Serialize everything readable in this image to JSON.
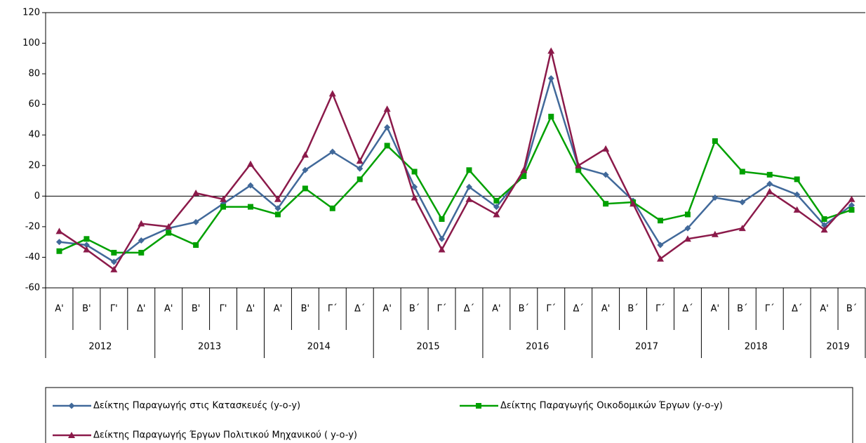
{
  "chart_data": {
    "type": "line",
    "categories": [
      "Α'",
      "Β'",
      "Γ'",
      "Δ'",
      "Α'",
      "Β'",
      "Γ'",
      "Δ'",
      "Α'",
      "Β'",
      "Γ΄",
      "Δ΄",
      "Α'",
      "Β΄",
      "Γ΄",
      "Δ΄",
      "Α'",
      "Β΄",
      "Γ΄",
      "Δ΄",
      "Α'",
      "Β΄",
      "Γ΄",
      "Δ΄",
      "Α'",
      "Β΄",
      "Γ΄",
      "Δ΄",
      "Α'",
      "Β΄"
    ],
    "years": [
      "2012",
      "2013",
      "2014",
      "2015",
      "2016",
      "2017",
      "2018",
      "2019"
    ],
    "series": [
      {
        "name": "Δείκτης Παραγωγής στις Κατασκευές (y-o-y)",
        "color": "#41699a",
        "marker": "diamond",
        "values": [
          -30,
          -32,
          -43,
          -29,
          -21,
          -17,
          -5,
          7,
          -8,
          17,
          29,
          18,
          45,
          6,
          -28,
          6,
          -7,
          15,
          77,
          19,
          14,
          -3,
          -32,
          -21,
          -1,
          -4,
          8,
          1,
          -19,
          -6
        ]
      },
      {
        "name": "Δείκτης Παραγωγής Οικοδομικών Έργων (y-o-y)",
        "color": "#00a000",
        "marker": "square",
        "values": [
          -36,
          -28,
          -37,
          -37,
          -24,
          -32,
          -7,
          -7,
          -12,
          5,
          -8,
          11,
          33,
          16,
          -15,
          17,
          -3,
          13,
          52,
          17,
          -5,
          -4,
          -16,
          -12,
          36,
          16,
          14,
          11,
          -15,
          -9
        ]
      },
      {
        "name": "Δείκτης Παραγωγής Έργων Πολιτικού Μηχανικού ( y-o-y)",
        "color": "#8b1a4a",
        "marker": "triangle",
        "values": [
          -23,
          -35,
          -48,
          -18,
          -20,
          2,
          -2,
          21,
          -2,
          27,
          67,
          23,
          57,
          -1,
          -35,
          -2,
          -12,
          17,
          95,
          20,
          31,
          -5,
          -41,
          -28,
          -25,
          -21,
          3,
          -9,
          -22,
          -2
        ]
      }
    ],
    "ylim": [
      -60,
      120
    ],
    "yticks": [
      -60,
      -40,
      -20,
      0,
      20,
      40,
      60,
      80,
      100,
      120
    ],
    "grid": false
  }
}
